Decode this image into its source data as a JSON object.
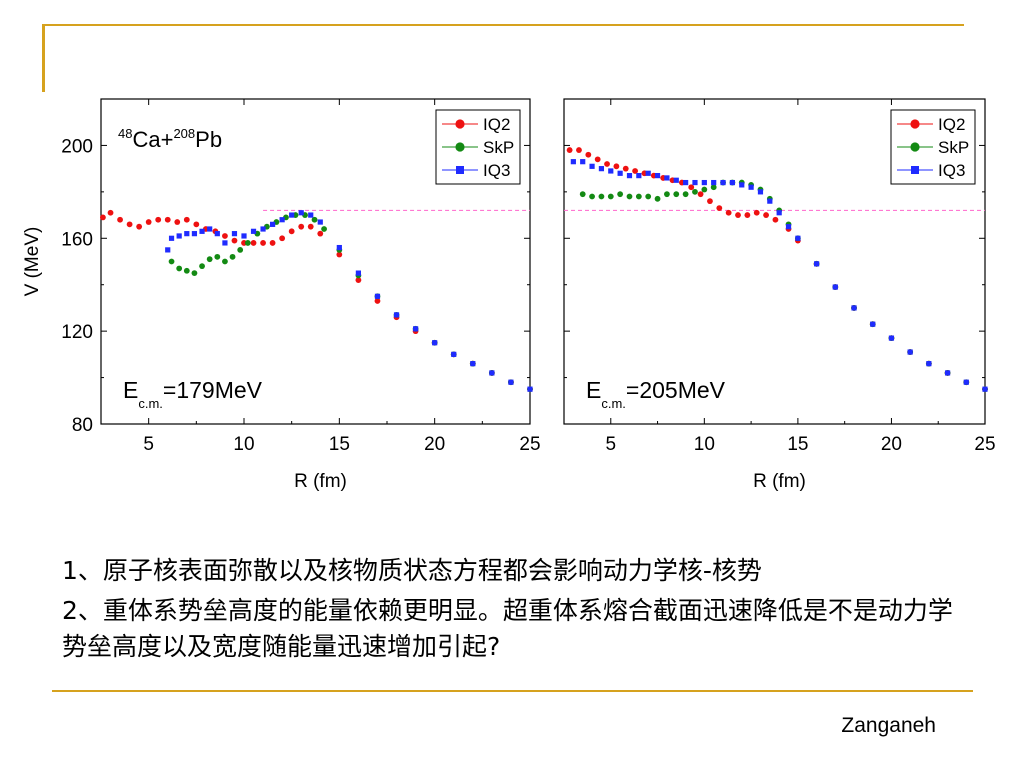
{
  "slide": {
    "bullets": [
      "1、原子核表面弥散以及核物质状态方程都会影响动力学核-核势",
      "2、重体系势垒高度的能量依赖更明显。超重体系熔合截面迅速降低是不是动力学势垒高度以及宽度随能量迅速增加引起?"
    ],
    "author": "Zanganeh"
  },
  "colors": {
    "IQ2": "#ee1111",
    "SkP": "#138a13",
    "IQ3": "#1f2bff",
    "barrier_line": "#ff66cc",
    "decoration": "#d6a21e"
  },
  "chart_data": [
    {
      "type": "scatter",
      "label_reaction": {
        "mass_a": "48",
        "sym_a": "Ca+",
        "mass_b": "208",
        "sym_b": "Pb"
      },
      "label_energy": {
        "E": "E",
        "sub": "c.m.",
        "value": "=179MeV"
      },
      "xlabel": "R (fm)",
      "ylabel": "V (MeV)",
      "xlim": [
        2.5,
        25
      ],
      "ylim": [
        80,
        220
      ],
      "xticks": [
        5,
        10,
        15,
        20,
        25
      ],
      "yticks": [
        80,
        120,
        160,
        200
      ],
      "legend_position": "top-right",
      "barrier_line": {
        "y": 172,
        "x": [
          11,
          25
        ]
      },
      "series": [
        {
          "name": "IQ2",
          "marker": "circle",
          "points": [
            [
              2.6,
              169
            ],
            [
              3,
              171
            ],
            [
              3.5,
              168
            ],
            [
              4,
              166
            ],
            [
              4.5,
              165
            ],
            [
              5,
              167
            ],
            [
              5.5,
              168
            ],
            [
              6,
              168
            ],
            [
              6.5,
              167
            ],
            [
              7,
              168
            ],
            [
              7.5,
              166
            ],
            [
              8,
              164
            ],
            [
              8.5,
              163
            ],
            [
              9,
              161
            ],
            [
              9.5,
              159
            ],
            [
              10,
              158
            ],
            [
              10.5,
              158
            ],
            [
              11,
              158
            ],
            [
              11.5,
              158
            ],
            [
              12,
              160
            ],
            [
              12.5,
              163
            ],
            [
              13,
              165
            ],
            [
              13.5,
              165
            ],
            [
              14,
              162
            ],
            [
              15,
              153
            ],
            [
              16,
              142
            ],
            [
              17,
              133
            ],
            [
              18,
              126
            ],
            [
              19,
              120
            ],
            [
              20,
              115
            ],
            [
              21,
              110
            ],
            [
              22,
              106
            ],
            [
              23,
              102
            ],
            [
              24,
              98
            ],
            [
              25,
              95
            ]
          ]
        },
        {
          "name": "SkP",
          "marker": "circle",
          "points": [
            [
              6.2,
              150
            ],
            [
              6.6,
              147
            ],
            [
              7,
              146
            ],
            [
              7.4,
              145
            ],
            [
              7.8,
              148
            ],
            [
              8.2,
              151
            ],
            [
              8.6,
              152
            ],
            [
              9,
              150
            ],
            [
              9.4,
              152
            ],
            [
              9.8,
              155
            ],
            [
              10.2,
              158
            ],
            [
              10.7,
              162
            ],
            [
              11.2,
              165
            ],
            [
              11.7,
              167
            ],
            [
              12.2,
              169
            ],
            [
              12.7,
              170
            ],
            [
              13.2,
              170
            ],
            [
              13.7,
              168
            ],
            [
              14.2,
              164
            ],
            [
              15,
              155
            ],
            [
              16,
              144
            ],
            [
              17,
              135
            ],
            [
              18,
              127
            ],
            [
              19,
              121
            ],
            [
              20,
              115
            ],
            [
              21,
              110
            ],
            [
              22,
              106
            ],
            [
              23,
              102
            ],
            [
              24,
              98
            ],
            [
              25,
              95
            ]
          ]
        },
        {
          "name": "IQ3",
          "marker": "square",
          "points": [
            [
              6,
              155
            ],
            [
              6.2,
              160
            ],
            [
              6.6,
              161
            ],
            [
              7,
              162
            ],
            [
              7.4,
              162
            ],
            [
              7.8,
              163
            ],
            [
              8.2,
              164
            ],
            [
              8.6,
              162
            ],
            [
              9,
              158
            ],
            [
              9.5,
              162
            ],
            [
              10,
              161
            ],
            [
              10.5,
              163
            ],
            [
              11,
              164
            ],
            [
              11.5,
              166
            ],
            [
              12,
              168
            ],
            [
              12.5,
              170
            ],
            [
              13,
              171
            ],
            [
              13.5,
              170
            ],
            [
              14,
              167
            ],
            [
              15,
              156
            ],
            [
              16,
              145
            ],
            [
              17,
              135
            ],
            [
              18,
              127
            ],
            [
              19,
              121
            ],
            [
              20,
              115
            ],
            [
              21,
              110
            ],
            [
              22,
              106
            ],
            [
              23,
              102
            ],
            [
              24,
              98
            ],
            [
              25,
              95
            ]
          ]
        }
      ]
    },
    {
      "type": "scatter",
      "label_energy": {
        "E": "E",
        "sub": "c.m.",
        "value": "=205MeV"
      },
      "xlabel": "R (fm)",
      "xlim": [
        2.5,
        25
      ],
      "ylim": [
        80,
        220
      ],
      "xticks": [
        5,
        10,
        15,
        20,
        25
      ],
      "legend_position": "top-right",
      "barrier_line": {
        "y": 172,
        "x": [
          2.5,
          25
        ]
      },
      "series": [
        {
          "name": "IQ2",
          "marker": "circle",
          "points": [
            [
              2.8,
              198
            ],
            [
              3.3,
              198
            ],
            [
              3.8,
              196
            ],
            [
              4.3,
              194
            ],
            [
              4.8,
              192
            ],
            [
              5.3,
              191
            ],
            [
              5.8,
              190
            ],
            [
              6.3,
              189
            ],
            [
              6.8,
              188
            ],
            [
              7.3,
              187
            ],
            [
              7.8,
              186
            ],
            [
              8.3,
              185
            ],
            [
              8.8,
              184
            ],
            [
              9.3,
              182
            ],
            [
              9.8,
              179
            ],
            [
              10.3,
              176
            ],
            [
              10.8,
              173
            ],
            [
              11.3,
              171
            ],
            [
              11.8,
              170
            ],
            [
              12.3,
              170
            ],
            [
              12.8,
              171
            ],
            [
              13.3,
              170
            ],
            [
              13.8,
              168
            ],
            [
              14.5,
              164
            ],
            [
              15,
              159
            ],
            [
              16,
              149
            ],
            [
              17,
              139
            ],
            [
              18,
              130
            ],
            [
              19,
              123
            ],
            [
              20,
              117
            ],
            [
              21,
              111
            ],
            [
              22,
              106
            ],
            [
              23,
              102
            ],
            [
              24,
              98
            ],
            [
              25,
              95
            ]
          ]
        },
        {
          "name": "SkP",
          "marker": "circle",
          "points": [
            [
              3.5,
              179
            ],
            [
              4,
              178
            ],
            [
              4.5,
              178
            ],
            [
              5,
              178
            ],
            [
              5.5,
              179
            ],
            [
              6,
              178
            ],
            [
              6.5,
              178
            ],
            [
              7,
              178
            ],
            [
              7.5,
              177
            ],
            [
              8,
              179
            ],
            [
              8.5,
              179
            ],
            [
              9,
              179
            ],
            [
              9.5,
              180
            ],
            [
              10,
              181
            ],
            [
              10.5,
              182
            ],
            [
              11,
              184
            ],
            [
              11.5,
              184
            ],
            [
              12,
              184
            ],
            [
              12.5,
              183
            ],
            [
              13,
              181
            ],
            [
              13.5,
              177
            ],
            [
              14,
              172
            ],
            [
              14.5,
              166
            ],
            [
              15,
              160
            ],
            [
              16,
              149
            ],
            [
              17,
              139
            ],
            [
              18,
              130
            ],
            [
              19,
              123
            ],
            [
              20,
              117
            ],
            [
              21,
              111
            ],
            [
              22,
              106
            ],
            [
              23,
              102
            ],
            [
              24,
              98
            ],
            [
              25,
              95
            ]
          ]
        },
        {
          "name": "IQ3",
          "marker": "square",
          "points": [
            [
              3,
              193
            ],
            [
              3.5,
              193
            ],
            [
              4,
              191
            ],
            [
              4.5,
              190
            ],
            [
              5,
              189
            ],
            [
              5.5,
              188
            ],
            [
              6,
              187
            ],
            [
              6.5,
              187
            ],
            [
              7,
              188
            ],
            [
              7.5,
              187
            ],
            [
              8,
              186
            ],
            [
              8.5,
              185
            ],
            [
              9,
              184
            ],
            [
              9.5,
              184
            ],
            [
              10,
              184
            ],
            [
              10.5,
              184
            ],
            [
              11,
              184
            ],
            [
              11.5,
              184
            ],
            [
              12,
              183
            ],
            [
              12.5,
              182
            ],
            [
              13,
              180
            ],
            [
              13.5,
              176
            ],
            [
              14,
              171
            ],
            [
              14.5,
              165
            ],
            [
              15,
              160
            ],
            [
              16,
              149
            ],
            [
              17,
              139
            ],
            [
              18,
              130
            ],
            [
              19,
              123
            ],
            [
              20,
              117
            ],
            [
              21,
              111
            ],
            [
              22,
              106
            ],
            [
              23,
              102
            ],
            [
              24,
              98
            ],
            [
              25,
              95
            ]
          ]
        }
      ]
    }
  ]
}
